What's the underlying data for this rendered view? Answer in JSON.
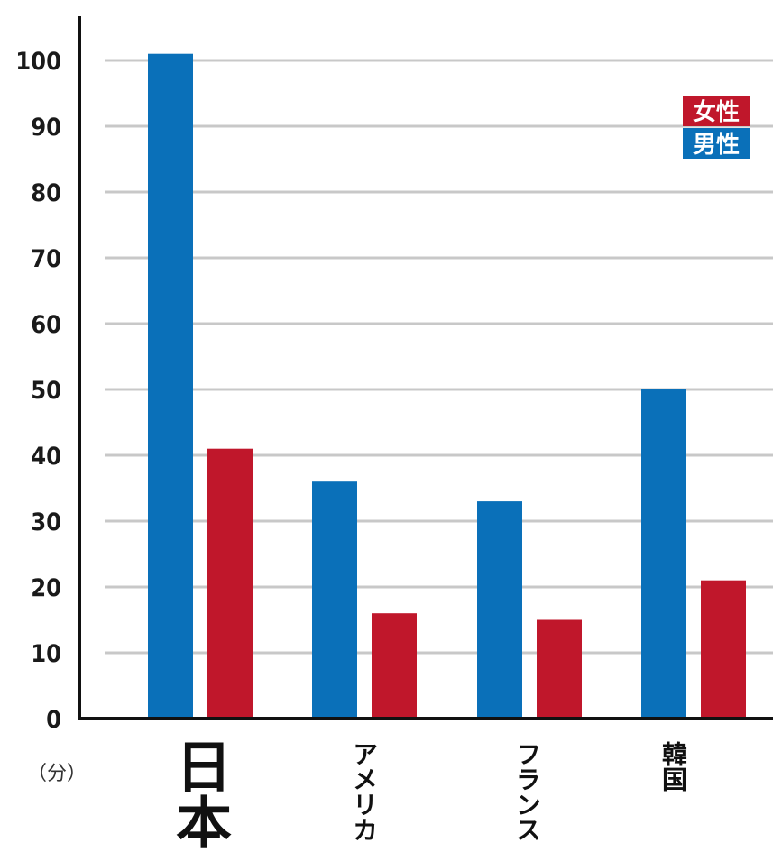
{
  "chart_data": {
    "type": "bar",
    "categories": [
      "日本",
      "アメリカ",
      "フランス",
      "韓国"
    ],
    "series": [
      {
        "name": "男性",
        "color": "#0a70b9",
        "values": [
          101,
          36,
          33,
          50
        ]
      },
      {
        "name": "女性",
        "color": "#c0172b",
        "values": [
          41,
          16,
          15,
          21
        ]
      }
    ],
    "ylim": [
      0,
      100
    ],
    "yticks": [
      "0",
      "10",
      "20",
      "30",
      "40",
      "50",
      "60",
      "70",
      "80",
      "90",
      "100"
    ],
    "unit_label": "（分）",
    "grid": true,
    "legend_position": "top-right"
  }
}
